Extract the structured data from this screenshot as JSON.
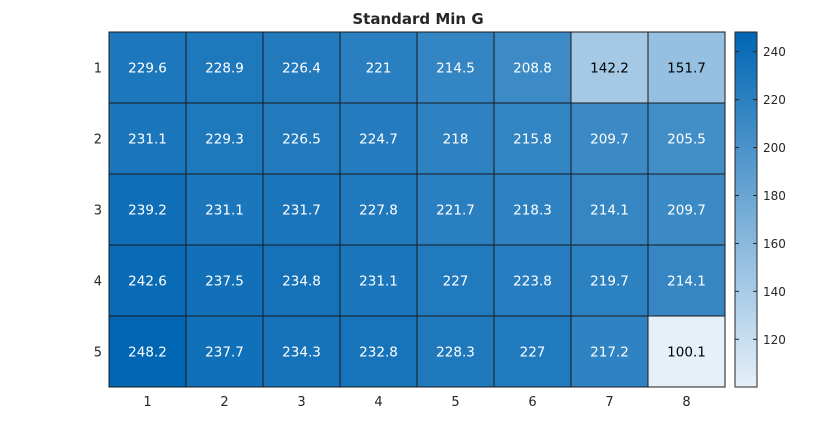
{
  "chart_data": {
    "type": "heatmap",
    "title": "Standard Min G",
    "x_categories": [
      "1",
      "2",
      "3",
      "4",
      "5",
      "6",
      "7",
      "8"
    ],
    "y_categories": [
      "1",
      "2",
      "3",
      "4",
      "5"
    ],
    "values": [
      [
        229.6,
        228.9,
        226.4,
        221,
        214.5,
        208.8,
        142.2,
        151.7
      ],
      [
        231.1,
        229.3,
        226.5,
        224.7,
        218,
        215.8,
        209.7,
        205.5
      ],
      [
        239.2,
        231.1,
        231.7,
        227.8,
        221.7,
        218.3,
        214.1,
        209.7
      ],
      [
        242.6,
        237.5,
        234.8,
        231.1,
        227,
        223.8,
        219.7,
        214.1
      ],
      [
        248.2,
        237.7,
        234.3,
        232.8,
        228.3,
        227,
        217.2,
        100.1
      ]
    ],
    "value_labels": [
      [
        "229.6",
        "228.9",
        "226.4",
        "221",
        "214.5",
        "208.8",
        "142.2",
        "151.7"
      ],
      [
        "231.1",
        "229.3",
        "226.5",
        "224.7",
        "218",
        "215.8",
        "209.7",
        "205.5"
      ],
      [
        "239.2",
        "231.1",
        "231.7",
        "227.8",
        "221.7",
        "218.3",
        "214.1",
        "209.7"
      ],
      [
        "242.6",
        "237.5",
        "234.8",
        "231.1",
        "227",
        "223.8",
        "219.7",
        "214.1"
      ],
      [
        "248.2",
        "237.7",
        "234.3",
        "232.8",
        "228.3",
        "227",
        "217.2",
        "100.1"
      ]
    ],
    "colorbar": {
      "range": [
        100.1,
        248.2
      ],
      "ticks": [
        120,
        140,
        160,
        180,
        200,
        220,
        240
      ],
      "colormap": [
        "#e6f0f9",
        "#0066b3"
      ]
    },
    "text_colors": {
      "dark": "#000000",
      "light": "#ffffff"
    },
    "grid_color": "#1a1a1a"
  }
}
